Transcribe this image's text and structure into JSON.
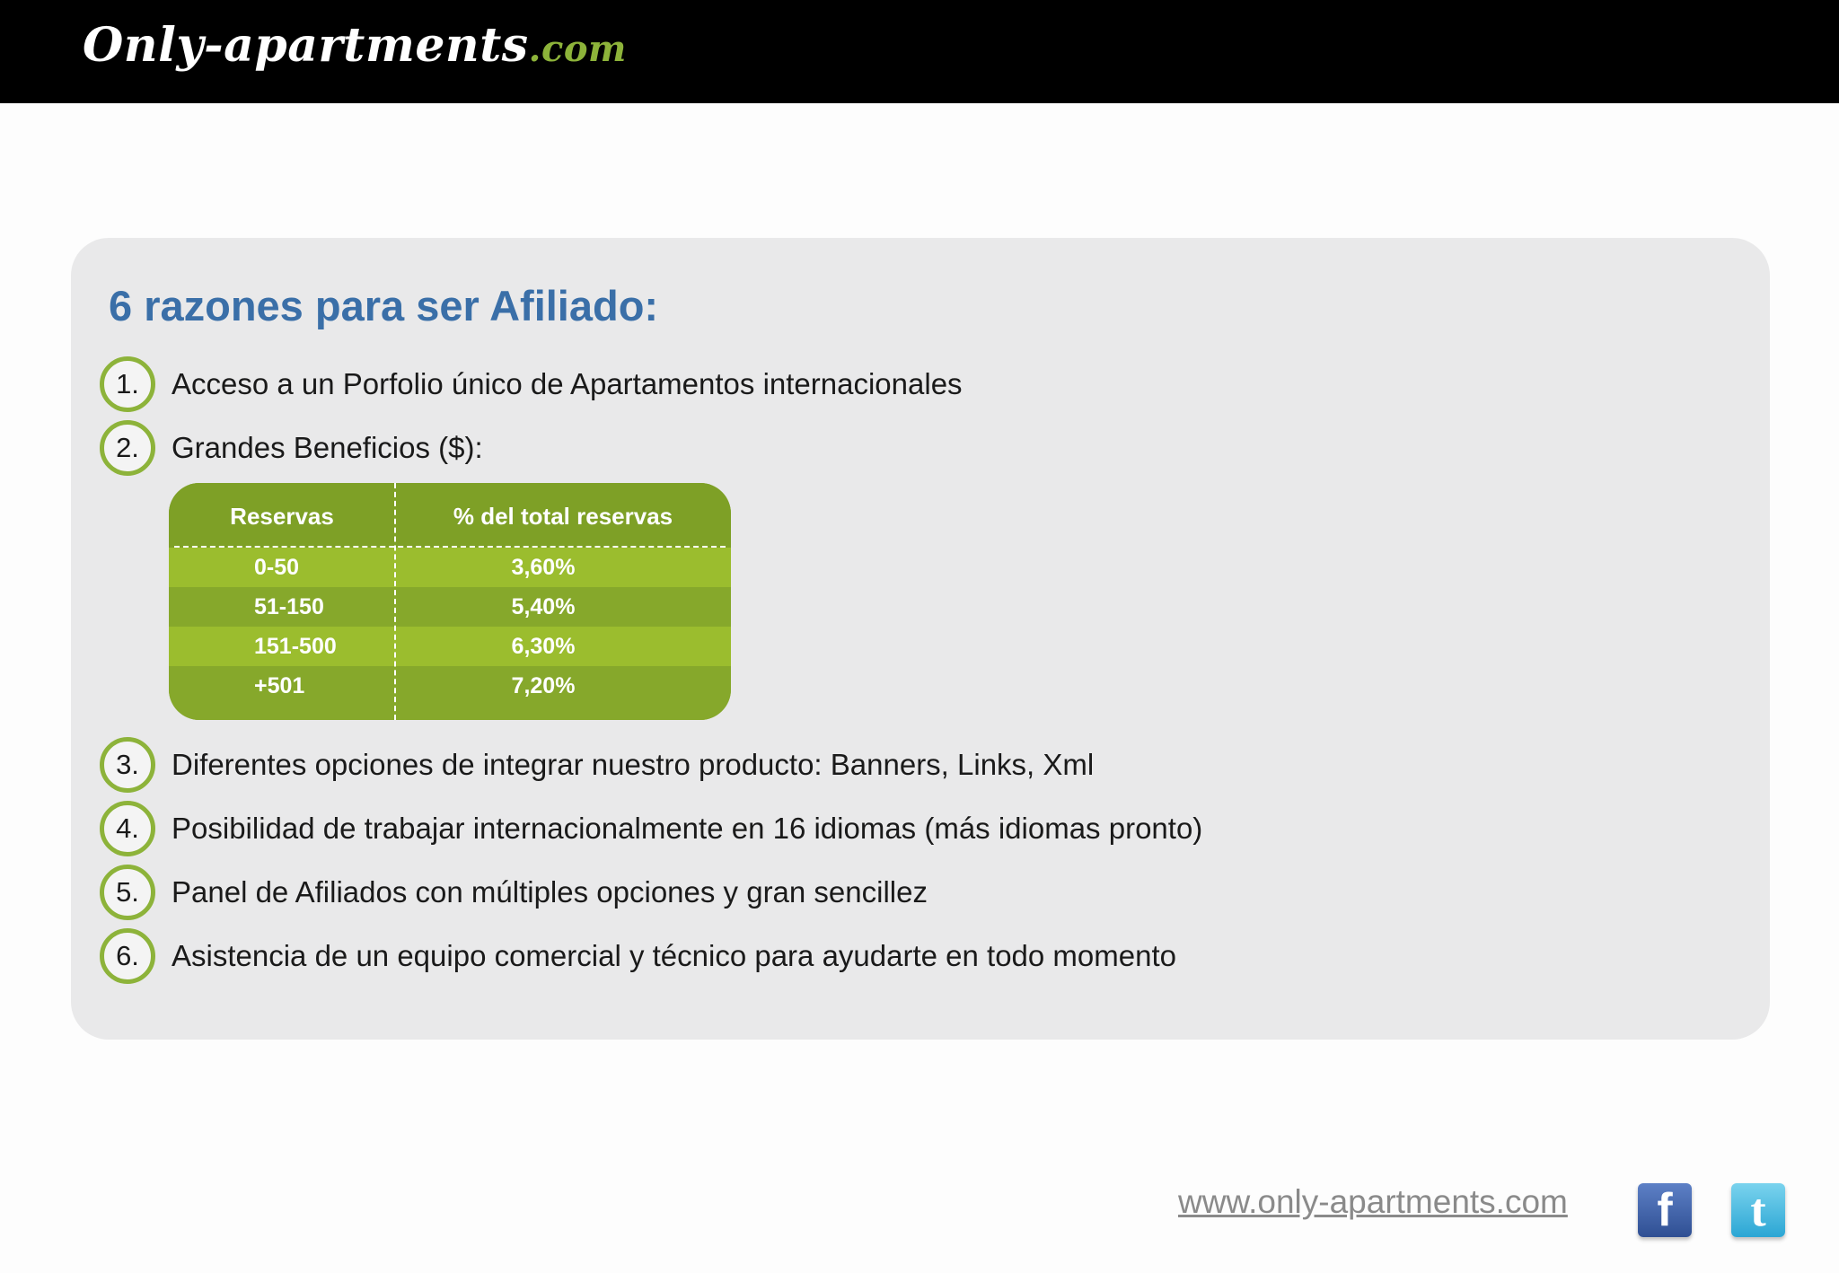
{
  "header": {
    "logo_main": "Only-apartments",
    "logo_tld": ".com",
    "background_color": "#000000",
    "tld_color": "#8db33a"
  },
  "panel": {
    "heading": "6 razones para ser Afiliado:",
    "heading_color": "#3a6fa8",
    "badge_color": "#8db33a",
    "items": [
      {
        "number": "1.",
        "text": "Acceso a un Porfolio único de Apartamentos internacionales"
      },
      {
        "number": "2.",
        "text": "Grandes Beneficios ($):"
      },
      {
        "number": "3.",
        "text": "Diferentes opciones de integrar nuestro producto:  Banners, Links, Xml"
      },
      {
        "number": "4.",
        "text": "Posibilidad de trabajar internacionalmente en 16 idiomas (más idiomas pronto)"
      },
      {
        "number": "5.",
        "text": "Panel de Afiliados con múltiples opciones y  gran sencillez"
      },
      {
        "number": "6.",
        "text": "Asistencia de un equipo comercial y técnico para ayudarte en todo momento"
      }
    ],
    "table": {
      "headers": [
        "Reservas",
        "% del total  reservas"
      ],
      "rows": [
        [
          "0-50",
          "3,60%"
        ],
        [
          "51-150",
          "5,40%"
        ],
        [
          "151-500",
          "6,30%"
        ],
        [
          "+501",
          "7,20%"
        ]
      ],
      "color": "#8db33a"
    }
  },
  "footer": {
    "url": "www.only-apartments.com",
    "facebook_icon": "facebook-icon",
    "facebook_glyph": "f",
    "twitter_icon": "twitter-icon",
    "twitter_glyph": "t"
  }
}
